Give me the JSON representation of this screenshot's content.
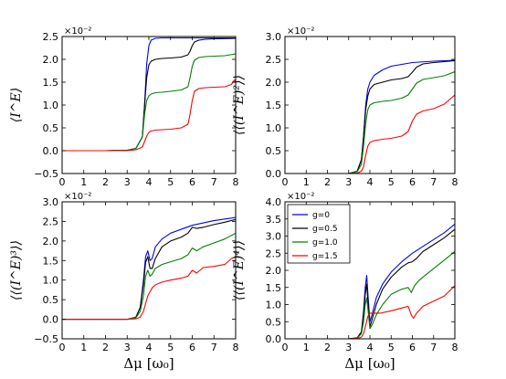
{
  "figure": {
    "xlabel": "Δμ  [ω₀]",
    "legend": {
      "placement": "upper-left of bottom-right panel",
      "entries": [
        {
          "label": "g=0",
          "color": "#0000ff"
        },
        {
          "label": "g=0.5",
          "color": "#000000"
        },
        {
          "label": "g=1.0",
          "color": "#008000"
        },
        {
          "label": "g=1.5",
          "color": "#ff0000"
        }
      ]
    }
  },
  "chart_data": [
    {
      "type": "line",
      "panel": "top-left",
      "ylabel": "⟨I^E⟩",
      "multiplier": "×10⁻²",
      "xlim": [
        0,
        8
      ],
      "ylim": [
        -0.5,
        2.5
      ],
      "xticks": [
        0,
        1,
        2,
        3,
        4,
        5,
        6,
        7,
        8
      ],
      "yticks": [
        -0.5,
        0.0,
        0.5,
        1.0,
        1.5,
        2.0,
        2.5
      ],
      "ytick_labels": [
        "−0.5",
        "0.0",
        "0.5",
        "1.0",
        "1.5",
        "2.0",
        "2.5"
      ],
      "series": [
        {
          "name": "g=0",
          "color": "#0000ff",
          "x": [
            0,
            1,
            2,
            3,
            3.4,
            3.7,
            3.8,
            3.9,
            4.0,
            4.1,
            4.3,
            4.6,
            5,
            6,
            7,
            8
          ],
          "y": [
            0,
            0,
            0,
            0.01,
            0.05,
            0.3,
            1.0,
            1.9,
            2.3,
            2.42,
            2.46,
            2.47,
            2.47,
            2.47,
            2.47,
            2.47
          ]
        },
        {
          "name": "g=0.5",
          "color": "#000000",
          "x": [
            0,
            1,
            2,
            3,
            3.4,
            3.7,
            3.8,
            3.9,
            4.0,
            4.1,
            4.3,
            4.6,
            5,
            5.5,
            5.8,
            5.9,
            6.0,
            6.1,
            6.3,
            6.6,
            7,
            8
          ],
          "y": [
            0,
            0,
            0,
            0.01,
            0.05,
            0.3,
            1.0,
            1.6,
            1.88,
            1.96,
            2.0,
            2.02,
            2.03,
            2.05,
            2.1,
            2.18,
            2.3,
            2.38,
            2.42,
            2.44,
            2.45,
            2.46
          ]
        },
        {
          "name": "g=1.0",
          "color": "#008000",
          "x": [
            0,
            1,
            2,
            3,
            3.4,
            3.7,
            3.8,
            3.9,
            4.0,
            4.1,
            4.3,
            4.6,
            5,
            5.5,
            5.8,
            5.9,
            6.0,
            6.1,
            6.3,
            6.6,
            7,
            7.5,
            8
          ],
          "y": [
            0,
            0,
            0,
            0.01,
            0.05,
            0.3,
            0.8,
            1.1,
            1.2,
            1.24,
            1.27,
            1.28,
            1.3,
            1.33,
            1.4,
            1.6,
            1.85,
            1.98,
            2.04,
            2.06,
            2.07,
            2.08,
            2.12
          ]
        },
        {
          "name": "g=1.5",
          "color": "#ff0000",
          "x": [
            0,
            1,
            2,
            3,
            3.4,
            3.7,
            3.8,
            3.9,
            4.0,
            4.1,
            4.3,
            4.6,
            5,
            5.5,
            5.8,
            5.9,
            6.0,
            6.1,
            6.3,
            6.6,
            7,
            7.5,
            7.8,
            7.95,
            8
          ],
          "y": [
            0,
            0,
            0,
            0.0,
            0.02,
            0.08,
            0.2,
            0.32,
            0.4,
            0.43,
            0.45,
            0.46,
            0.47,
            0.5,
            0.58,
            0.8,
            1.1,
            1.3,
            1.36,
            1.38,
            1.39,
            1.4,
            1.45,
            1.55,
            1.5
          ]
        }
      ]
    },
    {
      "type": "line",
      "panel": "top-right",
      "ylabel": "⟨⟨(I^E)²⟩⟩",
      "multiplier": "×10⁻²",
      "xlim": [
        0,
        8
      ],
      "ylim": [
        0.0,
        3.0
      ],
      "xticks": [
        0,
        1,
        2,
        3,
        4,
        5,
        6,
        7,
        8
      ],
      "yticks": [
        0.0,
        0.5,
        1.0,
        1.5,
        2.0,
        2.5,
        3.0
      ],
      "ytick_labels": [
        "0.0",
        "0.5",
        "1.0",
        "1.5",
        "2.0",
        "2.5",
        "3.0"
      ],
      "series": [
        {
          "name": "g=0",
          "color": "#0000ff",
          "x": [
            0,
            1,
            2,
            3,
            3.4,
            3.6,
            3.7,
            3.8,
            3.9,
            4.0,
            4.2,
            4.6,
            5,
            6,
            7,
            8
          ],
          "y": [
            0,
            0,
            0,
            0,
            0.05,
            0.3,
            0.8,
            1.5,
            1.85,
            2.0,
            2.15,
            2.27,
            2.35,
            2.43,
            2.46,
            2.48
          ]
        },
        {
          "name": "g=0.5",
          "color": "#000000",
          "x": [
            0,
            1,
            2,
            3,
            3.4,
            3.6,
            3.7,
            3.8,
            3.9,
            4.0,
            4.2,
            4.6,
            5,
            5.5,
            5.8,
            6.0,
            6.2,
            6.5,
            7,
            7.5,
            8
          ],
          "y": [
            0,
            0,
            0,
            0,
            0.05,
            0.3,
            0.8,
            1.4,
            1.7,
            1.85,
            1.95,
            2.0,
            2.05,
            2.08,
            2.12,
            2.22,
            2.33,
            2.4,
            2.43,
            2.45,
            2.47
          ]
        },
        {
          "name": "g=1.0",
          "color": "#008000",
          "x": [
            0,
            1,
            2,
            3,
            3.4,
            3.6,
            3.7,
            3.8,
            3.9,
            4.0,
            4.2,
            4.6,
            5,
            5.5,
            5.8,
            6.0,
            6.2,
            6.5,
            7,
            7.5,
            8
          ],
          "y": [
            0,
            0,
            0,
            0,
            0.04,
            0.2,
            0.6,
            1.1,
            1.4,
            1.5,
            1.55,
            1.58,
            1.6,
            1.65,
            1.72,
            1.85,
            1.98,
            2.06,
            2.1,
            2.14,
            2.23
          ]
        },
        {
          "name": "g=1.5",
          "color": "#ff0000",
          "x": [
            0,
            1,
            2,
            3,
            3.4,
            3.6,
            3.7,
            3.8,
            3.9,
            4.0,
            4.2,
            4.6,
            5,
            5.5,
            5.8,
            6.0,
            6.2,
            6.5,
            7,
            7.5,
            8
          ],
          "y": [
            0,
            0,
            0,
            0,
            0.01,
            0.05,
            0.15,
            0.4,
            0.6,
            0.68,
            0.72,
            0.75,
            0.77,
            0.82,
            0.92,
            1.15,
            1.3,
            1.37,
            1.42,
            1.52,
            1.72
          ]
        }
      ]
    },
    {
      "type": "line",
      "panel": "bottom-left",
      "ylabel": "⟨⟨(I^E)³⟩⟩",
      "multiplier": "×10⁻²",
      "xlim": [
        0,
        8
      ],
      "ylim": [
        -0.5,
        3.0
      ],
      "xticks": [
        0,
        1,
        2,
        3,
        4,
        5,
        6,
        7,
        8
      ],
      "yticks": [
        -0.5,
        0.0,
        0.5,
        1.0,
        1.5,
        2.0,
        2.5,
        3.0
      ],
      "ytick_labels": [
        "−0.5",
        "0.0",
        "0.5",
        "1.0",
        "1.5",
        "2.0",
        "2.5",
        "3.0"
      ],
      "series": [
        {
          "name": "g=0",
          "color": "#0000ff",
          "x": [
            0,
            1,
            2,
            3,
            3.4,
            3.6,
            3.75,
            3.85,
            3.95,
            4.05,
            4.15,
            4.3,
            4.6,
            5,
            6,
            7,
            8
          ],
          "y": [
            0,
            0,
            0,
            0,
            0.05,
            0.3,
            1.0,
            1.6,
            1.75,
            1.5,
            1.55,
            1.85,
            2.05,
            2.2,
            2.4,
            2.52,
            2.6
          ]
        },
        {
          "name": "g=0.5",
          "color": "#000000",
          "x": [
            0,
            1,
            2,
            3,
            3.4,
            3.6,
            3.75,
            3.85,
            3.95,
            4.05,
            4.15,
            4.3,
            4.6,
            5,
            5.5,
            5.8,
            6.0,
            6.2,
            6.5,
            7,
            7.5,
            8
          ],
          "y": [
            0,
            0,
            0,
            0,
            0.05,
            0.3,
            0.9,
            1.45,
            1.6,
            1.3,
            1.3,
            1.55,
            1.85,
            2.0,
            2.1,
            2.2,
            2.35,
            2.32,
            2.35,
            2.42,
            2.48,
            2.55
          ]
        },
        {
          "name": "g=1.0",
          "color": "#008000",
          "x": [
            0,
            1,
            2,
            3,
            3.4,
            3.6,
            3.75,
            3.85,
            3.95,
            4.05,
            4.15,
            4.3,
            4.6,
            5,
            5.5,
            5.8,
            6.0,
            6.2,
            6.5,
            7,
            7.5,
            8
          ],
          "y": [
            0,
            0,
            0,
            0,
            0.04,
            0.2,
            0.6,
            1.1,
            1.25,
            1.1,
            1.15,
            1.3,
            1.4,
            1.47,
            1.55,
            1.65,
            1.82,
            1.75,
            1.85,
            1.95,
            2.05,
            2.2
          ]
        },
        {
          "name": "g=1.5",
          "color": "#ff0000",
          "x": [
            0,
            1,
            2,
            3,
            3.4,
            3.6,
            3.75,
            3.85,
            3.95,
            4.05,
            4.15,
            4.3,
            4.6,
            5,
            5.5,
            5.8,
            6.0,
            6.2,
            6.5,
            7,
            7.5,
            7.8,
            8
          ],
          "y": [
            0,
            0,
            0,
            0,
            0.01,
            0.05,
            0.2,
            0.4,
            0.6,
            0.7,
            0.8,
            0.88,
            0.95,
            1.0,
            1.05,
            1.1,
            1.25,
            1.18,
            1.32,
            1.35,
            1.4,
            1.55,
            1.6
          ]
        }
      ]
    },
    {
      "type": "line",
      "panel": "bottom-right",
      "ylabel": "⟨⟨(I^E)⁴⟩⟩",
      "multiplier": "×10⁻²",
      "xlim": [
        0,
        8
      ],
      "ylim": [
        0.0,
        4.0
      ],
      "xticks": [
        0,
        1,
        2,
        3,
        4,
        5,
        6,
        7,
        8
      ],
      "yticks": [
        0.0,
        0.5,
        1.0,
        1.5,
        2.0,
        2.5,
        3.0,
        3.5,
        4.0
      ],
      "ytick_labels": [
        "0.0",
        "0.5",
        "1.0",
        "1.5",
        "2.0",
        "2.5",
        "3.0",
        "3.5",
        "4.0"
      ],
      "series": [
        {
          "name": "g=0",
          "color": "#0000ff",
          "x": [
            0,
            1,
            2,
            3,
            3.4,
            3.6,
            3.7,
            3.78,
            3.85,
            3.92,
            4.0,
            4.1,
            4.3,
            4.6,
            5,
            5.5,
            6,
            6.5,
            7,
            7.5,
            8
          ],
          "y": [
            0,
            0,
            0,
            0,
            0.03,
            0.2,
            0.8,
            1.5,
            1.85,
            1.2,
            0.5,
            0.7,
            1.2,
            1.6,
            1.95,
            2.25,
            2.5,
            2.7,
            2.9,
            3.1,
            3.35
          ]
        },
        {
          "name": "g=0.5",
          "color": "#000000",
          "x": [
            0,
            1,
            2,
            3,
            3.4,
            3.6,
            3.7,
            3.78,
            3.85,
            3.92,
            4.0,
            4.1,
            4.3,
            4.6,
            5,
            5.5,
            5.8,
            6.0,
            6.2,
            6.5,
            7,
            7.5,
            8
          ],
          "y": [
            0,
            0,
            0,
            0,
            0.03,
            0.2,
            0.7,
            1.3,
            1.6,
            1.0,
            0.35,
            0.55,
            1.0,
            1.45,
            1.8,
            2.1,
            2.22,
            2.25,
            2.35,
            2.55,
            2.75,
            2.95,
            3.2
          ]
        },
        {
          "name": "g=1.0",
          "color": "#008000",
          "x": [
            0,
            1,
            2,
            3,
            3.4,
            3.6,
            3.7,
            3.78,
            3.85,
            3.92,
            4.0,
            4.1,
            4.3,
            4.6,
            5,
            5.5,
            5.8,
            5.95,
            6.1,
            6.3,
            6.6,
            7,
            7.5,
            8
          ],
          "y": [
            0,
            0,
            0,
            0,
            0.02,
            0.15,
            0.5,
            1.0,
            1.2,
            0.8,
            0.3,
            0.4,
            0.7,
            1.0,
            1.3,
            1.45,
            1.5,
            1.35,
            1.55,
            1.7,
            1.85,
            2.05,
            2.3,
            2.55
          ]
        },
        {
          "name": "g=1.5",
          "color": "#ff0000",
          "x": [
            0,
            1,
            2,
            3,
            3.4,
            3.6,
            3.7,
            3.8,
            3.9,
            4.0,
            4.2,
            4.5,
            5,
            5.5,
            5.8,
            5.95,
            6.05,
            6.2,
            6.5,
            7,
            7.5,
            8
          ],
          "y": [
            0,
            0,
            0,
            0,
            0.01,
            0.05,
            0.15,
            0.4,
            0.65,
            0.75,
            0.75,
            0.75,
            0.82,
            0.9,
            0.95,
            0.7,
            0.6,
            0.75,
            0.95,
            1.1,
            1.25,
            1.55
          ]
        }
      ]
    }
  ]
}
